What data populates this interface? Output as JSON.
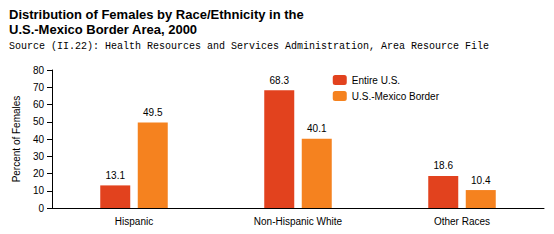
{
  "chart_data": {
    "type": "bar",
    "title": "Distribution of Females by Race/Ethnicity in the U.S.-Mexico Border Area, 2000",
    "subtitle": "Source (II.22): Health Resources and Services Administration, Area Resource File",
    "y_label": "Percent of Females",
    "categories": [
      "Hispanic",
      "Non-Hispanic White",
      "Other Races"
    ],
    "series": [
      {
        "name": "Entire U.S.",
        "color": "#e2421e",
        "values": [
          13.1,
          68.3,
          18.6
        ]
      },
      {
        "name": "U.S.-Mexico Border",
        "color": "#f5821f",
        "values": [
          49.5,
          40.1,
          10.4
        ]
      }
    ],
    "ylim": [
      0,
      80
    ],
    "yticks": [
      0,
      10,
      20,
      30,
      40,
      50,
      60,
      70,
      80
    ],
    "grid": false,
    "legend": "upper right",
    "data_labels": true
  }
}
